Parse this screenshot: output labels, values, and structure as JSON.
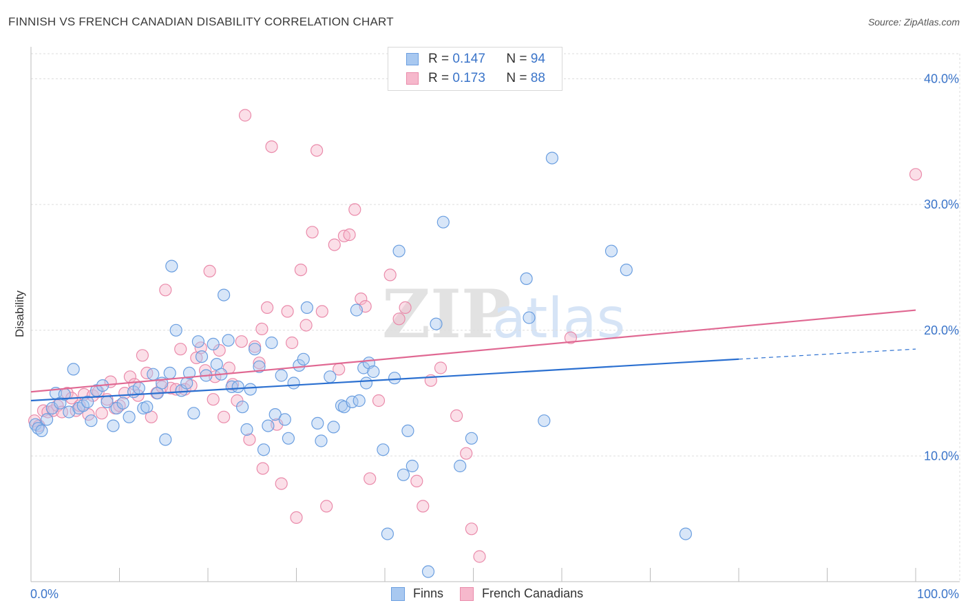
{
  "title": "FINNISH VS FRENCH CANADIAN DISABILITY CORRELATION CHART",
  "source": "Source: ZipAtlas.com",
  "legend_top": [
    {
      "r_label": "R =",
      "r_value": "0.147",
      "n_label": "N =",
      "n_value": "94"
    },
    {
      "r_label": "R =",
      "r_value": "0.173",
      "n_label": "N =",
      "n_value": "88"
    }
  ],
  "colors": {
    "finns_fill": "#a8c8f0",
    "finns_stroke": "#6a9ee0",
    "finns_line": "#2a6fd0",
    "fc_fill": "#f6b8cc",
    "fc_stroke": "#ea8aaa",
    "fc_line": "#e06892",
    "axis_label": "#3a74c9",
    "grid": "#dddddd"
  },
  "chart_data": {
    "type": "scatter",
    "title": "FINNISH VS FRENCH CANADIAN DISABILITY CORRELATION CHART",
    "xlabel": "",
    "ylabel": "Disability",
    "xlim": [
      0,
      100
    ],
    "ylim": [
      0,
      42
    ],
    "x_tick_labels": [
      "0.0%",
      "100.0%"
    ],
    "y_ticks": [
      10,
      20,
      30,
      40
    ],
    "y_tick_labels": [
      "10.0%",
      "20.0%",
      "30.0%",
      "40.0%"
    ],
    "grid": true,
    "legend_position": "bottom",
    "series": [
      {
        "name": "Finns",
        "r": 0.147,
        "n": 94,
        "trend": {
          "x0": 0,
          "y0": 14.4,
          "x1": 80,
          "y1": 17.7,
          "dash_to_x": 100,
          "dash_to_y": 18.5
        },
        "points": [
          [
            0.5,
            12.5
          ],
          [
            0.8,
            12.2
          ],
          [
            1.2,
            12.0
          ],
          [
            1.8,
            12.9
          ],
          [
            2.4,
            13.8
          ],
          [
            2.8,
            15.0
          ],
          [
            3.3,
            14.2
          ],
          [
            3.8,
            14.9
          ],
          [
            4.3,
            13.5
          ],
          [
            4.8,
            16.9
          ],
          [
            5.4,
            13.8
          ],
          [
            5.9,
            14.0
          ],
          [
            6.4,
            14.3
          ],
          [
            6.8,
            12.8
          ],
          [
            7.4,
            15.2
          ],
          [
            8.1,
            15.6
          ],
          [
            8.6,
            14.3
          ],
          [
            9.3,
            12.4
          ],
          [
            9.7,
            13.8
          ],
          [
            10.4,
            14.2
          ],
          [
            11.1,
            13.1
          ],
          [
            11.6,
            15.1
          ],
          [
            12.2,
            15.4
          ],
          [
            12.7,
            13.8
          ],
          [
            13.1,
            13.9
          ],
          [
            13.8,
            16.5
          ],
          [
            14.3,
            15.0
          ],
          [
            14.8,
            15.8
          ],
          [
            15.2,
            11.3
          ],
          [
            15.7,
            16.6
          ],
          [
            15.9,
            25.1
          ],
          [
            16.4,
            20.0
          ],
          [
            17.0,
            15.2
          ],
          [
            17.6,
            15.8
          ],
          [
            17.9,
            16.6
          ],
          [
            18.4,
            13.4
          ],
          [
            18.9,
            19.1
          ],
          [
            19.3,
            17.9
          ],
          [
            19.8,
            16.4
          ],
          [
            20.6,
            18.9
          ],
          [
            21.0,
            17.3
          ],
          [
            21.5,
            16.5
          ],
          [
            21.8,
            22.8
          ],
          [
            22.3,
            19.2
          ],
          [
            22.7,
            15.5
          ],
          [
            23.4,
            15.5
          ],
          [
            23.9,
            13.9
          ],
          [
            24.4,
            12.1
          ],
          [
            24.8,
            15.3
          ],
          [
            25.3,
            18.5
          ],
          [
            25.8,
            17.1
          ],
          [
            26.3,
            10.5
          ],
          [
            26.8,
            12.4
          ],
          [
            27.2,
            19.0
          ],
          [
            27.6,
            13.3
          ],
          [
            28.3,
            16.4
          ],
          [
            28.7,
            12.9
          ],
          [
            29.1,
            11.4
          ],
          [
            29.7,
            15.8
          ],
          [
            30.3,
            17.2
          ],
          [
            30.8,
            17.7
          ],
          [
            31.2,
            21.8
          ],
          [
            32.4,
            12.6
          ],
          [
            32.8,
            11.2
          ],
          [
            33.8,
            16.3
          ],
          [
            34.2,
            12.3
          ],
          [
            35.1,
            14.0
          ],
          [
            35.4,
            13.9
          ],
          [
            36.3,
            14.3
          ],
          [
            36.8,
            21.6
          ],
          [
            37.1,
            14.4
          ],
          [
            37.6,
            17.0
          ],
          [
            37.9,
            15.8
          ],
          [
            38.2,
            17.4
          ],
          [
            38.7,
            16.7
          ],
          [
            39.8,
            10.5
          ],
          [
            40.3,
            3.8
          ],
          [
            41.1,
            16.2
          ],
          [
            41.6,
            26.3
          ],
          [
            42.1,
            8.5
          ],
          [
            42.6,
            12.0
          ],
          [
            43.1,
            9.2
          ],
          [
            44.9,
            0.8
          ],
          [
            46.6,
            28.6
          ],
          [
            48.5,
            9.2
          ],
          [
            49.8,
            11.4
          ],
          [
            56.0,
            24.1
          ],
          [
            56.3,
            21.0
          ],
          [
            58.0,
            12.8
          ],
          [
            58.9,
            33.7
          ],
          [
            65.6,
            26.3
          ],
          [
            67.3,
            24.8
          ],
          [
            74.0,
            3.8
          ],
          [
            45.8,
            20.5
          ]
        ]
      },
      {
        "name": "French Canadians",
        "r": 0.173,
        "n": 88,
        "trend": {
          "x0": 0,
          "y0": 15.1,
          "x1": 100,
          "y1": 21.6
        },
        "points": [
          [
            0.4,
            12.8
          ],
          [
            0.9,
            12.4
          ],
          [
            1.4,
            13.6
          ],
          [
            1.9,
            13.5
          ],
          [
            2.5,
            13.6
          ],
          [
            3.0,
            14.0
          ],
          [
            3.5,
            13.5
          ],
          [
            4.1,
            15.0
          ],
          [
            4.6,
            14.6
          ],
          [
            5.1,
            13.6
          ],
          [
            5.5,
            14.0
          ],
          [
            6.0,
            14.9
          ],
          [
            6.5,
            13.3
          ],
          [
            7.0,
            14.8
          ],
          [
            7.6,
            15.1
          ],
          [
            8.0,
            13.4
          ],
          [
            8.6,
            14.5
          ],
          [
            9.0,
            15.9
          ],
          [
            9.5,
            13.8
          ],
          [
            10.0,
            14.0
          ],
          [
            10.6,
            15.0
          ],
          [
            11.2,
            16.3
          ],
          [
            11.7,
            15.7
          ],
          [
            12.1,
            14.8
          ],
          [
            12.6,
            18.0
          ],
          [
            13.1,
            16.6
          ],
          [
            13.6,
            13.1
          ],
          [
            14.2,
            15.0
          ],
          [
            14.8,
            15.5
          ],
          [
            15.2,
            23.2
          ],
          [
            15.8,
            15.4
          ],
          [
            16.4,
            15.3
          ],
          [
            16.9,
            18.5
          ],
          [
            17.4,
            15.3
          ],
          [
            18.1,
            15.6
          ],
          [
            18.7,
            17.8
          ],
          [
            19.2,
            18.6
          ],
          [
            19.7,
            16.8
          ],
          [
            20.2,
            24.7
          ],
          [
            20.8,
            16.3
          ],
          [
            21.3,
            18.4
          ],
          [
            21.8,
            13.1
          ],
          [
            22.4,
            17.0
          ],
          [
            22.8,
            15.7
          ],
          [
            23.3,
            14.4
          ],
          [
            23.8,
            19.1
          ],
          [
            24.2,
            37.1
          ],
          [
            24.7,
            11.3
          ],
          [
            25.3,
            18.7
          ],
          [
            25.8,
            17.4
          ],
          [
            26.1,
            20.1
          ],
          [
            26.7,
            21.8
          ],
          [
            27.2,
            34.6
          ],
          [
            27.8,
            12.5
          ],
          [
            28.3,
            7.8
          ],
          [
            29.0,
            21.5
          ],
          [
            29.5,
            19.0
          ],
          [
            30.0,
            5.1
          ],
          [
            30.5,
            24.8
          ],
          [
            31.1,
            20.4
          ],
          [
            31.8,
            27.8
          ],
          [
            32.3,
            34.3
          ],
          [
            32.9,
            21.5
          ],
          [
            33.4,
            6.0
          ],
          [
            34.3,
            26.8
          ],
          [
            34.8,
            16.9
          ],
          [
            35.4,
            27.5
          ],
          [
            36.0,
            27.6
          ],
          [
            36.6,
            29.6
          ],
          [
            37.3,
            22.5
          ],
          [
            37.8,
            21.9
          ],
          [
            38.3,
            8.2
          ],
          [
            39.3,
            14.4
          ],
          [
            40.6,
            24.4
          ],
          [
            41.6,
            20.9
          ],
          [
            42.3,
            21.8
          ],
          [
            43.6,
            8.0
          ],
          [
            44.3,
            6.0
          ],
          [
            45.2,
            16.0
          ],
          [
            46.3,
            17.0
          ],
          [
            48.1,
            13.2
          ],
          [
            49.2,
            10.2
          ],
          [
            49.8,
            4.2
          ],
          [
            50.7,
            2.0
          ],
          [
            61.0,
            19.4
          ],
          [
            100.0,
            32.4
          ],
          [
            26.2,
            9.0
          ],
          [
            20.6,
            14.5
          ]
        ]
      }
    ]
  },
  "watermark": {
    "zip": "ZIP",
    "atlas": "atlas"
  },
  "legend_bottom": [
    {
      "label": "Finns"
    },
    {
      "label": "French Canadians"
    }
  ]
}
